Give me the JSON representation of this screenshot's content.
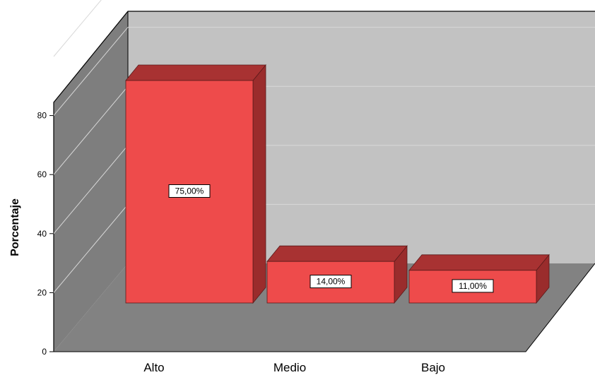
{
  "chart_data": {
    "type": "bar",
    "categories": [
      "Alto",
      "Medio",
      "Bajo"
    ],
    "values": [
      75,
      14,
      11
    ],
    "data_labels": [
      "75,00%",
      "14,00%",
      "11,00%"
    ],
    "title": "",
    "xlabel": "",
    "ylabel": "Porcentaje",
    "ylim": [
      0,
      100
    ],
    "y_ticks": [
      0,
      20,
      40,
      60,
      80
    ],
    "y_tick_labels": [
      "0",
      "20",
      "40",
      "60",
      "80"
    ],
    "grid": true,
    "style": "3d",
    "colors": {
      "bar_front": "#ee4b4b",
      "bar_top": "#a83232",
      "bar_side": "#9a2c2c",
      "back_wall": "#c2c2c2",
      "side_wall": "#7e7e7e",
      "floor": "#828282",
      "grid_line": "#d8d8d8"
    }
  }
}
